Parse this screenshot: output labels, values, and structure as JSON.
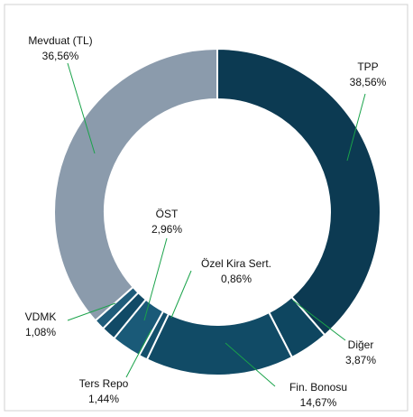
{
  "chart_data": {
    "type": "donut",
    "categories": [
      "TPP",
      "Diğer",
      "Fin. Bonosu",
      "Özel Kira Sert.",
      "ÖST",
      "Ters Repo",
      "VDMK",
      "Mevduat (TL)"
    ],
    "values": [
      38.56,
      3.87,
      14.67,
      0.86,
      2.96,
      1.44,
      1.08,
      36.56
    ],
    "value_labels": [
      "38,56%",
      "3,87%",
      "14,67%",
      "0,86%",
      "2,96%",
      "1,44%",
      "1,08%",
      "36,56%"
    ],
    "colors": [
      "#0c3a52",
      "#0e4660",
      "#114b66",
      "#15506c",
      "#1a5a78",
      "#114a66",
      "#1f5c7a",
      "#8b9bac"
    ]
  }
}
